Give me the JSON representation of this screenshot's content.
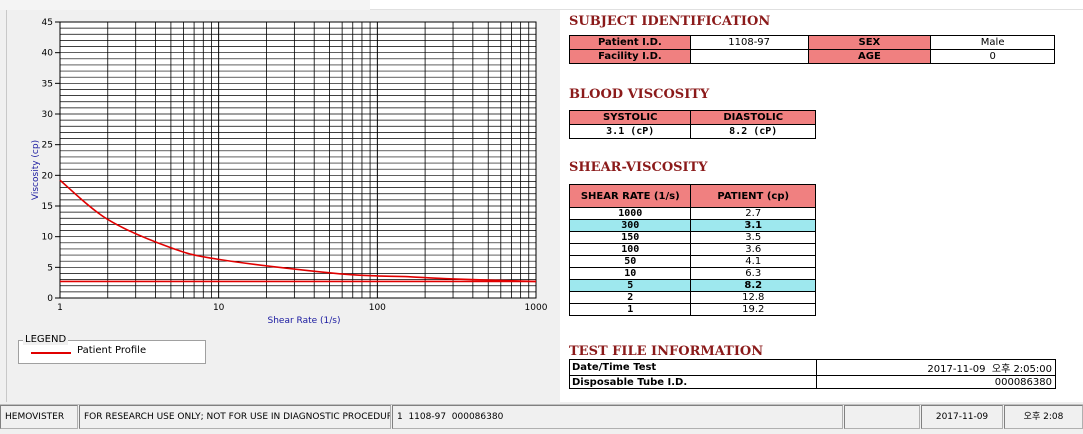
{
  "status_bar": {
    "app": "HEMOVISTER",
    "notice": "FOR RESEARCH USE ONLY; NOT FOR USE IN DIAGNOSTIC PROCEDURES",
    "record": "1  1108-97  000086380",
    "date": "2017-11-09",
    "time": "오후 2:08"
  },
  "legend": {
    "title": "LEGEND",
    "entry": "Patient Profile",
    "color": "#e00000"
  },
  "subject": {
    "title": "SUBJECT IDENTIFICATION",
    "patient_id_label": "Patient I.D.",
    "patient_id": "1108-97",
    "sex_label": "SEX",
    "sex": "Male",
    "facility_label": "Facility I.D.",
    "facility": "",
    "age_label": "AGE",
    "age": "0"
  },
  "blood_viscosity": {
    "title": "BLOOD VISCOSITY",
    "systolic_label": "SYSTOLIC",
    "diastolic_label": "DIASTOLIC",
    "systolic": "3.1 (cP)",
    "diastolic": "8.2 (cP)"
  },
  "shear_viscosity": {
    "title": "SHEAR-VISCOSITY",
    "col_rate": "SHEAR RATE (1/s)",
    "col_patient": "PATIENT (cp)",
    "rows": [
      {
        "rate": "1000",
        "value": "2.7"
      },
      {
        "rate": "300",
        "value": "3.1"
      },
      {
        "rate": "150",
        "value": "3.5"
      },
      {
        "rate": "100",
        "value": "3.6"
      },
      {
        "rate": "50",
        "value": "4.1"
      },
      {
        "rate": "10",
        "value": "6.3"
      },
      {
        "rate": "5",
        "value": "8.2"
      },
      {
        "rate": "2",
        "value": "12.8"
      },
      {
        "rate": "1",
        "value": "19.2"
      }
    ],
    "highlight_color": "#9ee8ee"
  },
  "test_file": {
    "title": "TEST FILE INFORMATION",
    "datetime_label": "Date/Time Test",
    "datetime": "2017-11-09  오후 2:05:00",
    "tube_label": "Disposable Tube I.D.",
    "tube": "000086380"
  },
  "chart_data": {
    "type": "line",
    "xlabel": "Shear Rate (1/s)",
    "ylabel": "Viscosity (cp)",
    "xscale": "log",
    "xlim": [
      1,
      1000
    ],
    "ylim": [
      0,
      45
    ],
    "xticks": [
      "1",
      "10",
      "100",
      "1000"
    ],
    "yticks": [
      "0",
      "5",
      "10",
      "15",
      "20",
      "25",
      "30",
      "35",
      "40",
      "45"
    ],
    "grid": true,
    "series": [
      {
        "name": "Patient Profile",
        "color": "#e00000",
        "x": [
          1,
          2,
          5,
          10,
          50,
          100,
          150,
          300,
          1000
        ],
        "y": [
          19.2,
          12.8,
          8.2,
          6.3,
          4.1,
          3.6,
          3.5,
          3.1,
          2.7
        ]
      }
    ],
    "reference_line": {
      "y": 2.7,
      "color": "#e00000"
    }
  }
}
